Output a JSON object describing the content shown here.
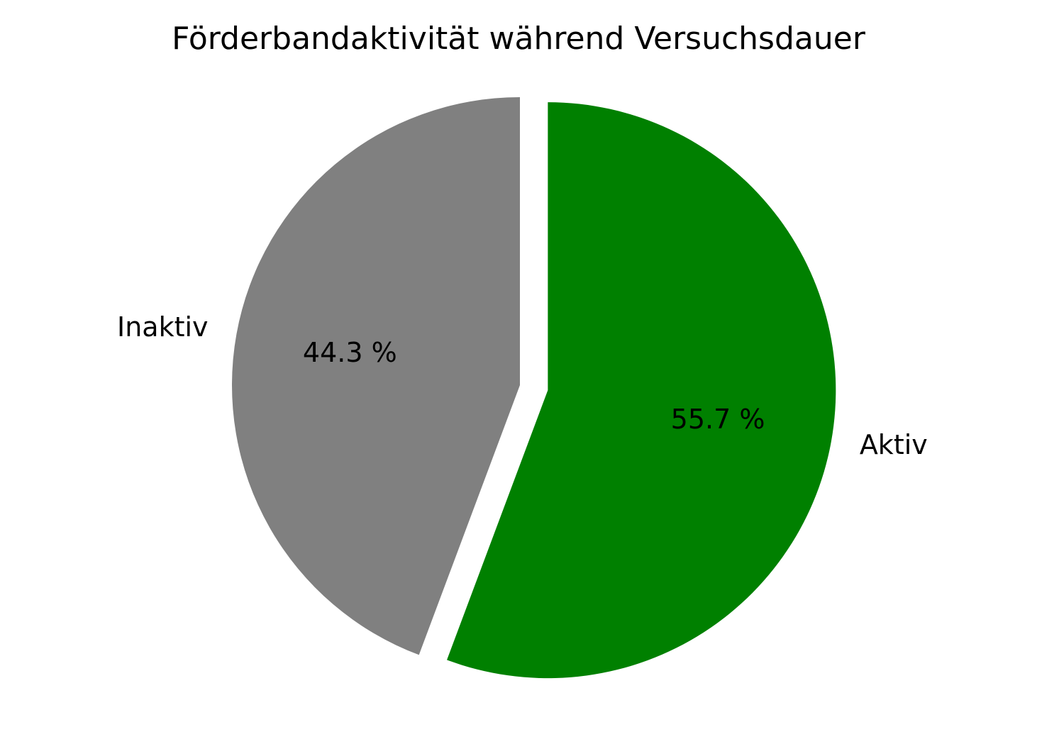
{
  "chart_data": {
    "type": "pie",
    "title": "Förderbandaktivität während Versuchsdauer",
    "slices": [
      {
        "label": "Aktiv",
        "value": 55.7,
        "pct_label": "55.7 %",
        "color": "#008000",
        "exploded": true
      },
      {
        "label": "Inaktiv",
        "value": 44.3,
        "pct_label": "44.3 %",
        "color": "#808080",
        "exploded": false
      }
    ]
  }
}
